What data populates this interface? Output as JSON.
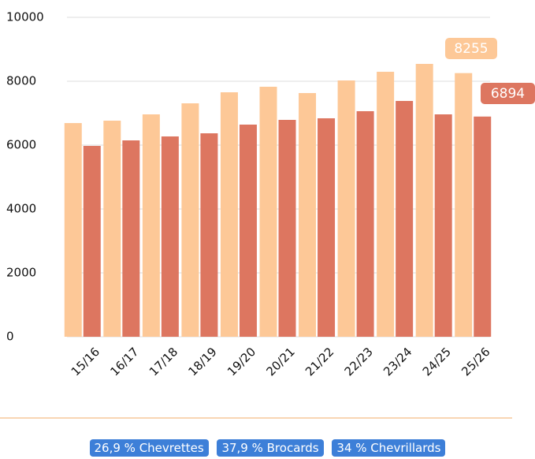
{
  "chart_data": {
    "type": "bar",
    "categories": [
      "15/16",
      "16/17",
      "17/18",
      "18/19",
      "19/20",
      "20/21",
      "21/22",
      "22/23",
      "23/24",
      "24/25",
      "25/26"
    ],
    "series": [
      {
        "color": "#fdc897",
        "values": [
          6690,
          6765,
          6963,
          7309,
          7654,
          7827,
          7630,
          8025,
          8296,
          8543,
          8255
        ]
      },
      {
        "color": "#dd7660",
        "values": [
          5975,
          6148,
          6272,
          6370,
          6642,
          6790,
          6840,
          7062,
          7383,
          6963,
          6894
        ]
      }
    ],
    "ylim": [
      0,
      10000
    ],
    "yticks": [
      0,
      2000,
      4000,
      6000,
      8000,
      10000
    ],
    "grid": true
  },
  "badges": [
    "26,9 % Chevrettes",
    "37,9 % Brocards",
    "34 % Chevrillards"
  ]
}
